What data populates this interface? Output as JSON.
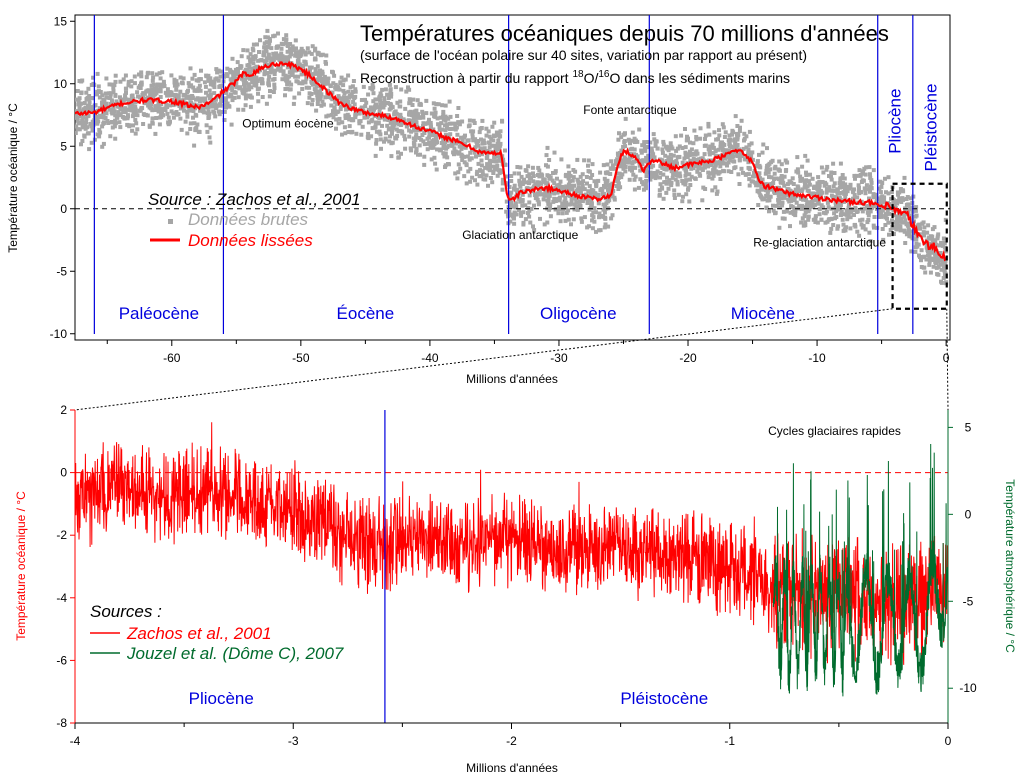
{
  "colors": {
    "raw": "#a6a6a6",
    "smoothed": "#ff0000",
    "zachos": "#ff0000",
    "jouzel": "#006b2d",
    "boundary": "#0000dd",
    "epoch_text": "#0000dd",
    "right_axis": "#006b2d",
    "left_axis_bottom": "#ff0000",
    "zoom_box": "#000000"
  },
  "chart_data": [
    {
      "type": "line",
      "title": "Températures océaniques depuis 70 millions d'années",
      "subtitle": "(surface de l'océan polaire sur 40 sites, variation par rapport au présent)",
      "subtitle2": {
        "prefix": "Reconstruction à partir du rapport ",
        "sup1": "18",
        "mid": "O/",
        "sup2": "16",
        "suffix": "O dans les sédiments marins"
      },
      "xlabel": "Millions d'années",
      "ylabel": "Température océanique / °C",
      "xlim": [
        -67.5,
        0.3
      ],
      "ylim": [
        -10.5,
        15.5
      ],
      "xticks": [
        -60,
        -50,
        -40,
        -30,
        -20,
        -10,
        0
      ],
      "yticks": [
        -10,
        -5,
        0,
        5,
        10,
        15
      ],
      "reference_line": 0,
      "boundaries": [
        -66.0,
        -56.0,
        -33.9,
        -23.0,
        -5.3,
        -2.58
      ],
      "epochs": [
        {
          "label": "Paléocène",
          "x": -61.0,
          "y": -8.8
        },
        {
          "label": "Éocène",
          "x": -45.0,
          "y": -8.8
        },
        {
          "label": "Oligocène",
          "x": -28.5,
          "y": -8.8
        },
        {
          "label": "Miocène",
          "x": -14.2,
          "y": -8.8
        },
        {
          "label": "Pliocène",
          "x": -4.0,
          "y": 7.0,
          "rotated": true
        },
        {
          "label": "Pléistocène",
          "x": -1.2,
          "y": 6.5,
          "rotated": true
        }
      ],
      "annotations": [
        {
          "text": "Optimum éocène",
          "x": -51.0,
          "y": 6.5
        },
        {
          "text": "Fonte antarctique",
          "x": -24.5,
          "y": 7.6
        },
        {
          "text": "Glaciation antarctique",
          "x": -33.0,
          "y": -2.4
        },
        {
          "text": "Re-glaciation antarctique",
          "x": -9.8,
          "y": -3.0
        }
      ],
      "source": "Source : Zachos et al., 2001",
      "legend": [
        {
          "label": "Données brutes",
          "style": "raw"
        },
        {
          "label": "Données lissées",
          "style": "smoothed"
        }
      ],
      "zoom_box": {
        "x": [
          -4.0,
          0.0
        ],
        "y": [
          -8.0,
          2.0
        ]
      },
      "series": [
        {
          "name": "Données lissées",
          "x": [
            -67.5,
            -66.0,
            -64.0,
            -62.0,
            -60.0,
            -58.0,
            -57.0,
            -56.0,
            -55.0,
            -54.5,
            -54.0,
            -53.0,
            -52.0,
            -51.0,
            -50.0,
            -49.0,
            -48.0,
            -47.0,
            -46.0,
            -45.0,
            -44.0,
            -43.0,
            -42.0,
            -41.0,
            -40.0,
            -39.0,
            -38.0,
            -37.0,
            -36.0,
            -35.0,
            -34.5,
            -34.0,
            -33.7,
            -33.0,
            -31.0,
            -29.0,
            -28.0,
            -27.0,
            -26.0,
            -25.5,
            -25.0,
            -24.0,
            -23.5,
            -23.0,
            -22.5,
            -22.0,
            -21.0,
            -20.0,
            -18.0,
            -17.0,
            -16.5,
            -16.0,
            -15.0,
            -14.5,
            -14.0,
            -12.0,
            -10.0,
            -8.0,
            -6.0,
            -5.0,
            -4.0,
            -3.0,
            -2.5,
            -2.0,
            -1.0,
            -0.5,
            0.0
          ],
          "y": [
            7.6,
            7.7,
            8.4,
            8.7,
            8.6,
            8.1,
            8.5,
            9.4,
            10.2,
            10.8,
            10.7,
            11.3,
            11.6,
            11.6,
            11.2,
            10.4,
            9.4,
            8.5,
            8.0,
            7.7,
            7.5,
            7.3,
            7.0,
            6.5,
            6.2,
            5.8,
            5.4,
            5.0,
            4.5,
            4.4,
            4.6,
            1.0,
            0.6,
            1.3,
            1.7,
            1.2,
            0.9,
            0.8,
            1.0,
            3.2,
            4.7,
            4.1,
            3.0,
            3.7,
            4.0,
            3.6,
            3.3,
            3.5,
            3.9,
            4.3,
            4.8,
            4.6,
            3.8,
            2.2,
            1.8,
            1.2,
            0.9,
            0.6,
            0.5,
            0.2,
            -0.1,
            -0.6,
            -1.4,
            -2.5,
            -3.0,
            -3.7,
            -4.0
          ]
        }
      ]
    },
    {
      "type": "line",
      "xlabel": "Millions d'années",
      "ylabel": "Température océanique / °C",
      "ylabel_right": "Température atmosphérique / °C",
      "xlim": [
        -4.0,
        0.0
      ],
      "ylim": [
        -8.0,
        2.0
      ],
      "ylim_right": [
        -12.0,
        6.0
      ],
      "xticks": [
        -4,
        -3,
        -2,
        -1,
        0
      ],
      "yticks": [
        -8,
        -6,
        -4,
        -2,
        0,
        2
      ],
      "yticks_right": [
        -10,
        -5,
        0,
        5
      ],
      "reference_line": 0,
      "boundaries": [
        -2.58
      ],
      "epochs": [
        {
          "label": "Pliocène",
          "x": -3.33,
          "y": -7.4
        },
        {
          "label": "Pléistocène",
          "x": -1.3,
          "y": -7.4
        }
      ],
      "annotations": [
        {
          "text": "Cycles glaciaires rapides",
          "x": -0.52,
          "y": 1.2
        }
      ],
      "legend_title": "Sources :",
      "legend": [
        {
          "label": "Zachos et al., 2001",
          "style": "zachos"
        },
        {
          "label": "Jouzel et al. (Dôme C), 2007",
          "style": "jouzel"
        }
      ],
      "series": [
        {
          "name": "Zachos et al., 2001",
          "axis": "left",
          "x": [
            -4.0,
            -3.8,
            -3.6,
            -3.4,
            -3.2,
            -3.0,
            -2.8,
            -2.6,
            -2.4,
            -2.2,
            -2.0,
            -1.8,
            -1.6,
            -1.4,
            -1.2,
            -1.0,
            -0.8,
            -0.6,
            -0.4,
            -0.2,
            0.0
          ],
          "y": [
            -1.0,
            -0.4,
            -0.8,
            -0.5,
            -0.9,
            -1.2,
            -2.0,
            -2.4,
            -2.0,
            -2.3,
            -2.2,
            -2.5,
            -2.3,
            -2.6,
            -2.7,
            -3.0,
            -3.6,
            -3.9,
            -3.9,
            -4.2,
            -3.5
          ],
          "amplitude": 1.0
        },
        {
          "name": "Jouzel et al. (Dôme C), 2007",
          "axis": "right",
          "x": [
            -0.8,
            -0.7,
            -0.6,
            -0.5,
            -0.4,
            -0.3,
            -0.2,
            -0.1,
            0.0
          ],
          "y": [
            -6.0,
            -6.5,
            -6.0,
            -6.5,
            -6.0,
            -6.5,
            -6.0,
            -6.5,
            -3.0
          ],
          "amplitude": 2.8
        }
      ]
    }
  ]
}
